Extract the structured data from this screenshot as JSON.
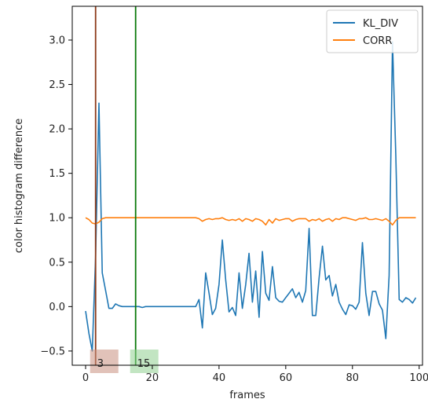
{
  "chart_data": {
    "type": "line",
    "xlabel": "frames",
    "ylabel": "color histogram difference",
    "xlim": [
      -4,
      101
    ],
    "ylim": [
      -0.66,
      3.38
    ],
    "xticks": [
      0,
      20,
      40,
      60,
      80,
      100
    ],
    "yticks": [
      -0.5,
      0.0,
      0.5,
      1.0,
      1.5,
      2.0,
      2.5,
      3.0
    ],
    "legend_position": "top-right",
    "series": [
      {
        "name": "KL_DIV",
        "color": "#1f77b4",
        "x": [
          0,
          1,
          2,
          3,
          4,
          5,
          6,
          7,
          8,
          9,
          10,
          11,
          12,
          13,
          14,
          15,
          16,
          17,
          18,
          19,
          20,
          21,
          22,
          23,
          24,
          25,
          26,
          27,
          28,
          29,
          30,
          31,
          32,
          33,
          34,
          35,
          36,
          37,
          38,
          39,
          40,
          41,
          42,
          43,
          44,
          45,
          46,
          47,
          48,
          49,
          50,
          51,
          52,
          53,
          54,
          55,
          56,
          57,
          58,
          59,
          60,
          61,
          62,
          63,
          64,
          65,
          66,
          67,
          68,
          69,
          70,
          71,
          72,
          73,
          74,
          75,
          76,
          77,
          78,
          79,
          80,
          81,
          82,
          83,
          84,
          85,
          86,
          87,
          88,
          89,
          90,
          91,
          92,
          93,
          94,
          95,
          96,
          97,
          98,
          99
        ],
        "values": [
          -0.05,
          -0.3,
          -0.5,
          0.55,
          2.29,
          0.38,
          0.18,
          -0.02,
          -0.02,
          0.03,
          0.01,
          0.0,
          0.0,
          0.0,
          0.0,
          0.0,
          0.0,
          -0.01,
          0.0,
          0.0,
          0.0,
          0.0,
          0.0,
          0.0,
          0.0,
          0.0,
          0.0,
          0.0,
          0.0,
          0.0,
          0.0,
          0.0,
          0.0,
          0.0,
          0.08,
          -0.24,
          0.38,
          0.15,
          -0.09,
          -0.02,
          0.25,
          0.75,
          0.3,
          -0.06,
          -0.01,
          -0.1,
          0.38,
          -0.02,
          0.25,
          0.6,
          0.05,
          0.4,
          -0.12,
          0.62,
          0.15,
          0.07,
          0.45,
          0.1,
          0.06,
          0.05,
          0.1,
          0.15,
          0.2,
          0.1,
          0.16,
          0.05,
          0.18,
          0.88,
          -0.1,
          -0.1,
          0.32,
          0.68,
          0.3,
          0.35,
          0.12,
          0.25,
          0.05,
          -0.03,
          -0.09,
          0.02,
          0.01,
          -0.03,
          0.05,
          0.72,
          0.15,
          -0.1,
          0.17,
          0.17,
          0.03,
          -0.04,
          -0.36,
          0.35,
          2.98,
          1.7,
          0.08,
          0.05,
          0.1,
          0.08,
          0.04,
          0.1
        ]
      },
      {
        "name": "CORR",
        "color": "#ff7f0e",
        "x": [
          0,
          1,
          2,
          3,
          4,
          5,
          6,
          7,
          8,
          9,
          10,
          11,
          12,
          13,
          14,
          15,
          16,
          17,
          18,
          19,
          20,
          21,
          22,
          23,
          24,
          25,
          26,
          27,
          28,
          29,
          30,
          31,
          32,
          33,
          34,
          35,
          36,
          37,
          38,
          39,
          40,
          41,
          42,
          43,
          44,
          45,
          46,
          47,
          48,
          49,
          50,
          51,
          52,
          53,
          54,
          55,
          56,
          57,
          58,
          59,
          60,
          61,
          62,
          63,
          64,
          65,
          66,
          67,
          68,
          69,
          70,
          71,
          72,
          73,
          74,
          75,
          76,
          77,
          78,
          79,
          80,
          81,
          82,
          83,
          84,
          85,
          86,
          87,
          88,
          89,
          90,
          91,
          92,
          93,
          94,
          95,
          96,
          97,
          98,
          99
        ],
        "values": [
          1.0,
          0.98,
          0.94,
          0.93,
          0.95,
          0.99,
          1.0,
          1.0,
          1.0,
          1.0,
          1.0,
          1.0,
          1.0,
          1.0,
          1.0,
          1.0,
          1.0,
          1.0,
          1.0,
          1.0,
          1.0,
          1.0,
          1.0,
          1.0,
          1.0,
          1.0,
          1.0,
          1.0,
          1.0,
          1.0,
          1.0,
          1.0,
          1.0,
          1.0,
          0.99,
          0.96,
          0.98,
          0.99,
          0.98,
          0.99,
          0.99,
          1.0,
          0.98,
          0.97,
          0.98,
          0.97,
          0.99,
          0.96,
          0.99,
          0.98,
          0.96,
          0.99,
          0.98,
          0.96,
          0.92,
          0.98,
          0.94,
          0.99,
          0.97,
          0.98,
          0.99,
          0.99,
          0.96,
          0.98,
          0.99,
          0.99,
          0.99,
          0.96,
          0.98,
          0.97,
          0.99,
          0.96,
          0.98,
          0.99,
          0.96,
          0.99,
          0.98,
          1.0,
          1.0,
          0.99,
          0.98,
          0.97,
          0.99,
          0.99,
          1.0,
          0.98,
          0.98,
          0.99,
          0.98,
          0.97,
          0.99,
          0.96,
          0.92,
          0.97,
          1.0,
          1.0,
          1.0,
          1.0,
          1.0,
          1.0
        ]
      }
    ],
    "markers": [
      {
        "x": 3,
        "label": "3",
        "line_color": "#8c3a1a",
        "box_color": "#c98f7f"
      },
      {
        "x": 15,
        "label": "15",
        "line_color": "#0b7a0b",
        "box_color": "#8fd08f"
      }
    ]
  }
}
